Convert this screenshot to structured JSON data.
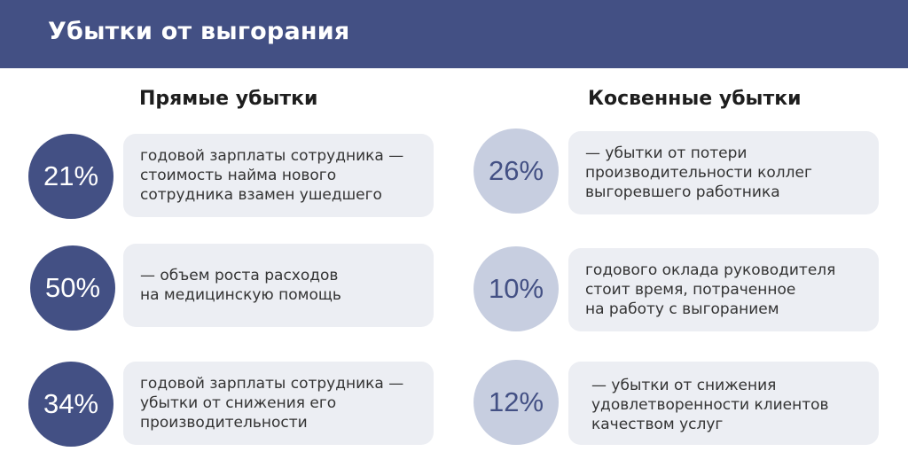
{
  "header": {
    "title": "Убытки от выгорания"
  },
  "columns": [
    {
      "title": "Прямые убытки",
      "items": [
        {
          "percent": "21%",
          "lines": [
            "годовой зарплаты сотрудника —",
            "стоимость найма нового",
            "сотрудника взамен ушедшего"
          ]
        },
        {
          "percent": "50%",
          "lines": [
            "— объем роста расходов",
            "на медицинскую помощь"
          ]
        },
        {
          "percent": "34%",
          "lines": [
            "годовой зарплаты сотрудника —",
            "убытки от снижения его",
            "производительности"
          ]
        }
      ]
    },
    {
      "title": "Косвенные убытки",
      "items": [
        {
          "percent": "26%",
          "lines": [
            "— убытки от потери",
            "производительности коллег",
            "выгоревшего работника"
          ]
        },
        {
          "percent": "10%",
          "lines": [
            "годового оклада руководителя",
            "стоит время, потраченное",
            "на работу с выгоранием"
          ]
        },
        {
          "percent": "12%",
          "lines": [
            "— убытки от снижения",
            "удовлетворенности клиентов",
            "качеством услуг"
          ]
        }
      ]
    }
  ],
  "colors": {
    "accent": "#435084",
    "accent_light": "#c7cee0",
    "card_bg": "#eceef3"
  }
}
